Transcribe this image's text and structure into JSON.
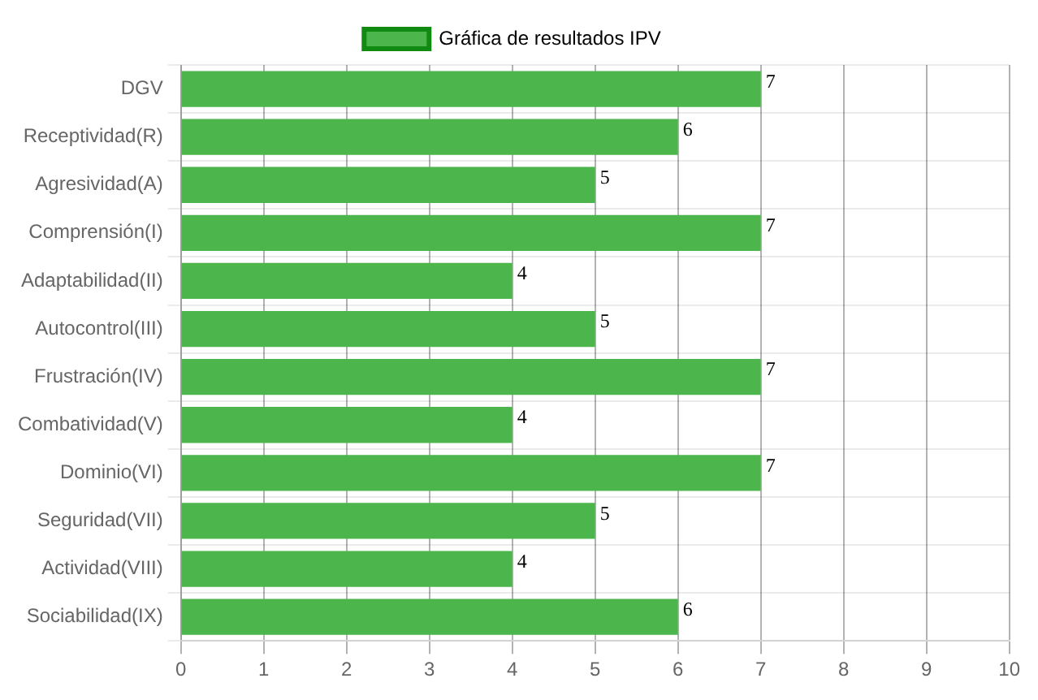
{
  "chart_data": {
    "type": "bar",
    "orientation": "horizontal",
    "categories": [
      "DGV",
      "Receptividad(R)",
      "Agresividad(A)",
      "Comprensión(I)",
      "Adaptabilidad(II)",
      "Autocontrol(III)",
      "Frustración(IV)",
      "Combatividad(V)",
      "Dominio(VI)",
      "Seguridad(VII)",
      "Actividad(VIII)",
      "Sociabilidad(IX)"
    ],
    "series": [
      {
        "name": "Gráfica de resultados IPV",
        "color": "#4cb54c",
        "values": [
          7,
          6,
          5,
          7,
          4,
          5,
          7,
          4,
          7,
          5,
          4,
          6
        ]
      }
    ],
    "xlim": [
      0,
      10
    ],
    "xticks": [
      0,
      1,
      2,
      3,
      4,
      5,
      6,
      7,
      8,
      9,
      10
    ],
    "grid": true,
    "legend": "top",
    "data_labels": true
  }
}
